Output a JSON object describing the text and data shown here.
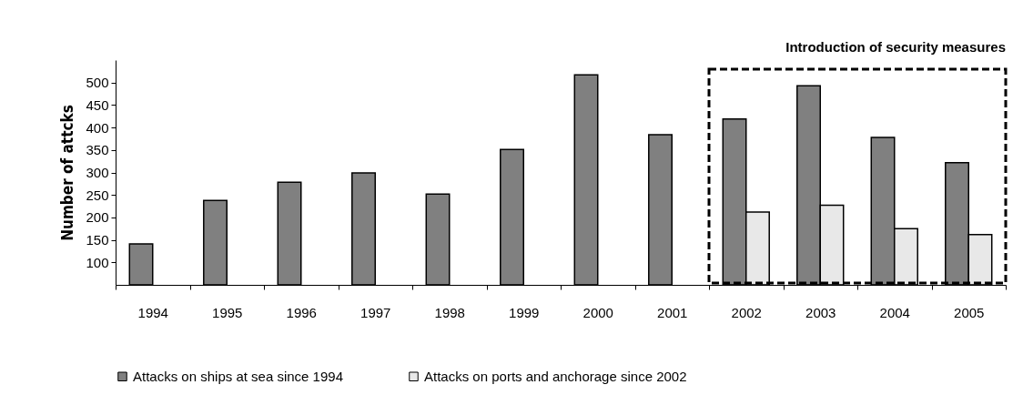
{
  "chart_data": {
    "type": "bar",
    "ylabel": "Number of attcks",
    "categories": [
      "1994",
      "1995",
      "1996",
      "1997",
      "1998",
      "1999",
      "2000",
      "2001",
      "2002",
      "2003",
      "2004",
      "2005"
    ],
    "series": [
      {
        "name": "Attacks on ships at sea since 1994",
        "color": "#808080",
        "values": [
          141,
          238,
          278,
          299,
          252,
          351,
          517,
          384,
          419,
          493,
          378,
          322
        ]
      },
      {
        "name": "Attacks on ports and anchorage since 2002",
        "color": "#e8e8e8",
        "values": [
          null,
          null,
          null,
          null,
          null,
          null,
          null,
          null,
          212,
          227,
          175,
          162
        ]
      }
    ],
    "ylim": [
      50,
      550
    ],
    "yticks": [
      100,
      150,
      200,
      250,
      300,
      350,
      400,
      450,
      500
    ],
    "annotations": [
      "Introduction of security measures"
    ],
    "legend": "bottom",
    "grid": false
  }
}
